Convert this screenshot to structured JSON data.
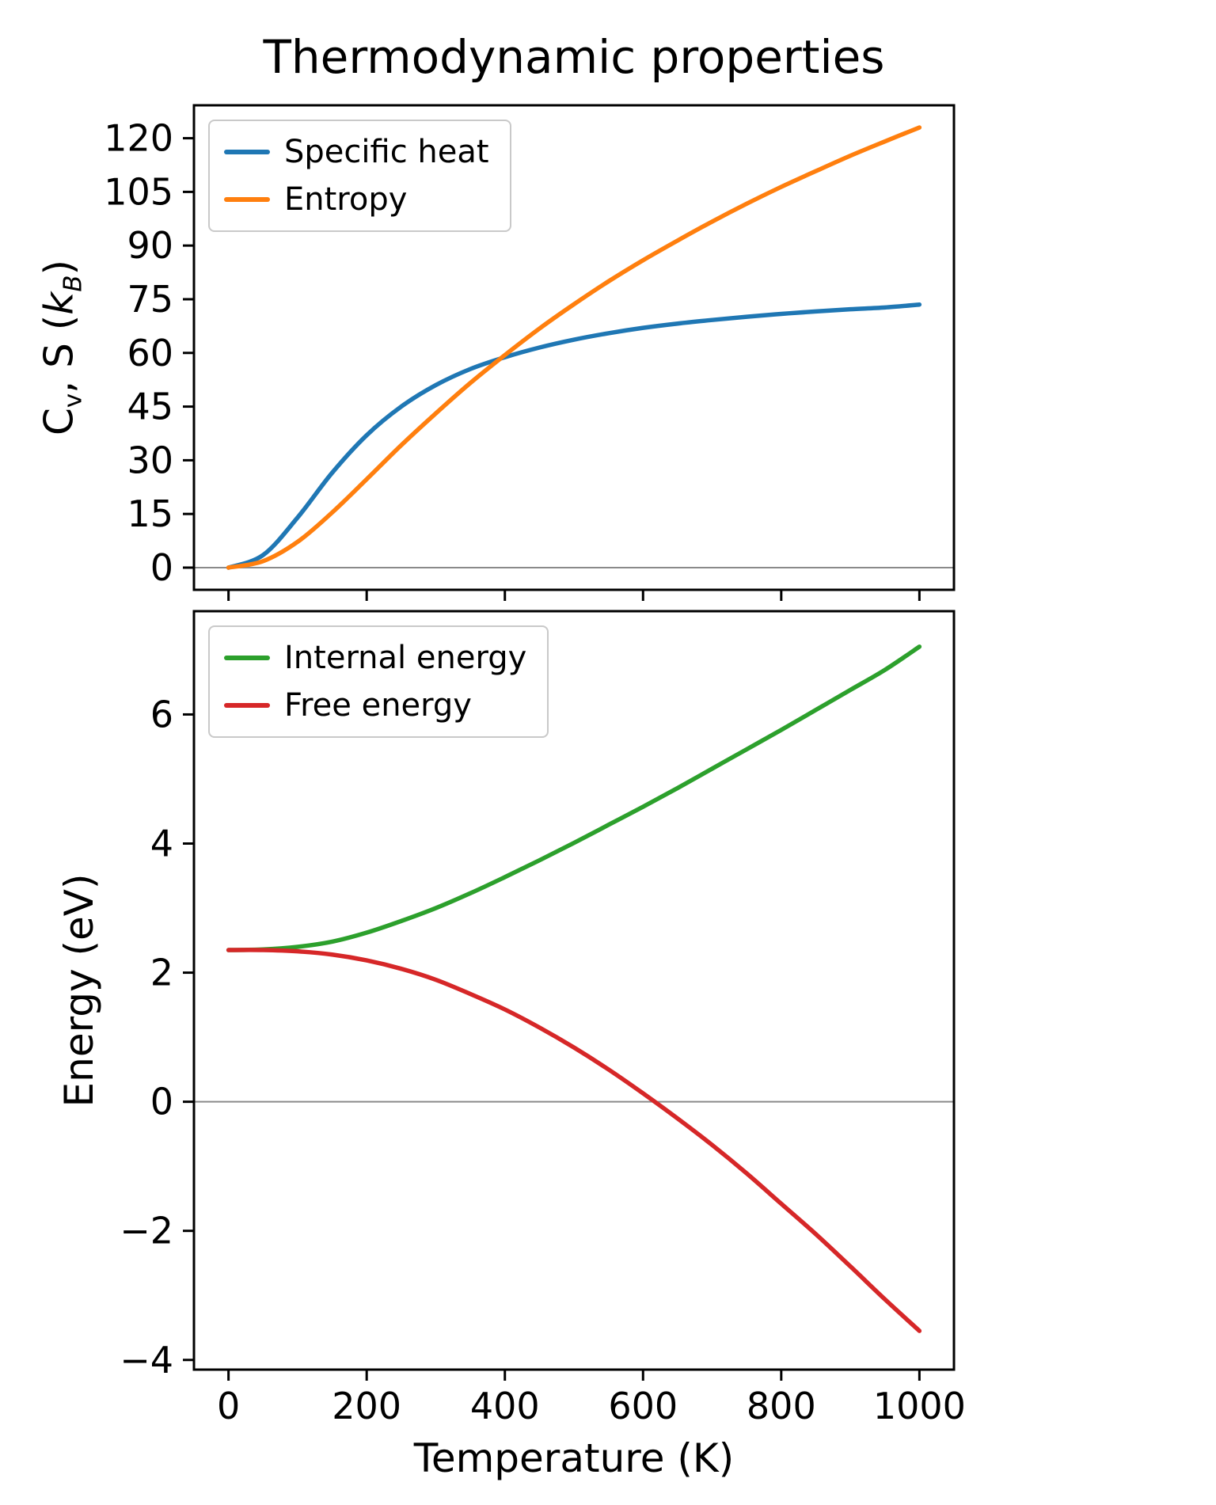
{
  "chart_data": [
    {
      "type": "line",
      "title": "Thermodynamic properties",
      "ylabel": "Cv, S (kB)",
      "ylabel_rich": [
        {
          "t": "C"
        },
        {
          "t": "v",
          "sub": true
        },
        {
          "t": ", S ("
        },
        {
          "t": "k",
          "italic": true
        },
        {
          "t": "B",
          "sub": true,
          "italic": true
        },
        {
          "t": ")"
        }
      ],
      "x": [
        0,
        50,
        100,
        150,
        200,
        250,
        300,
        350,
        400,
        450,
        500,
        550,
        600,
        650,
        700,
        750,
        800,
        850,
        900,
        950,
        1000
      ],
      "series": [
        {
          "name": "Specific heat",
          "color": "#1f77b4",
          "values": [
            0,
            3.5,
            14,
            26.5,
            37,
            45,
            51,
            55.5,
            58.8,
            61.5,
            63.7,
            65.5,
            67,
            68.2,
            69.2,
            70.1,
            70.9,
            71.6,
            72.2,
            72.7,
            73.5
          ]
        },
        {
          "name": "Entropy",
          "color": "#ff7f0e",
          "values": [
            0,
            1.8,
            7.2,
            15.4,
            24.7,
            34.2,
            43.1,
            51.6,
            59.4,
            66.8,
            73.6,
            80.0,
            85.9,
            91.4,
            96.7,
            101.7,
            106.4,
            110.8,
            115.1,
            119.1,
            123.0
          ]
        }
      ],
      "xlim": [
        -50,
        1050
      ],
      "ylim": [
        -6.2,
        129.2
      ],
      "yticks": [
        0,
        15,
        30,
        45,
        60,
        75,
        90,
        105,
        120
      ],
      "xticks": [
        0,
        200,
        400,
        600,
        800,
        1000
      ],
      "x_tick_labels_visible": false,
      "grid": false,
      "zero_line": true,
      "legend_position": "upper left"
    },
    {
      "type": "line",
      "xlabel": "Temperature (K)",
      "ylabel": "Energy (eV)",
      "x": [
        0,
        50,
        100,
        150,
        200,
        250,
        300,
        350,
        400,
        450,
        500,
        550,
        600,
        650,
        700,
        750,
        800,
        850,
        900,
        950,
        1000
      ],
      "series": [
        {
          "name": "Internal energy",
          "color": "#2ca02c",
          "values": [
            2.35,
            2.36,
            2.4,
            2.48,
            2.62,
            2.8,
            3.0,
            3.23,
            3.48,
            3.74,
            4.01,
            4.29,
            4.57,
            4.86,
            5.16,
            5.46,
            5.76,
            6.07,
            6.38,
            6.69,
            7.05
          ]
        },
        {
          "name": "Free energy",
          "color": "#d62728",
          "values": [
            2.35,
            2.35,
            2.33,
            2.28,
            2.19,
            2.06,
            1.89,
            1.67,
            1.43,
            1.15,
            0.84,
            0.5,
            0.13,
            -0.26,
            -0.67,
            -1.11,
            -1.58,
            -2.05,
            -2.55,
            -3.06,
            -3.55
          ]
        }
      ],
      "xlim": [
        -50,
        1050
      ],
      "ylim": [
        -4.15,
        7.6
      ],
      "yticks": [
        -4,
        -2,
        0,
        2,
        4,
        6
      ],
      "xticks": [
        0,
        200,
        400,
        600,
        800,
        1000
      ],
      "x_tick_labels_visible": true,
      "grid": false,
      "zero_line": true,
      "legend_position": "upper left"
    }
  ]
}
